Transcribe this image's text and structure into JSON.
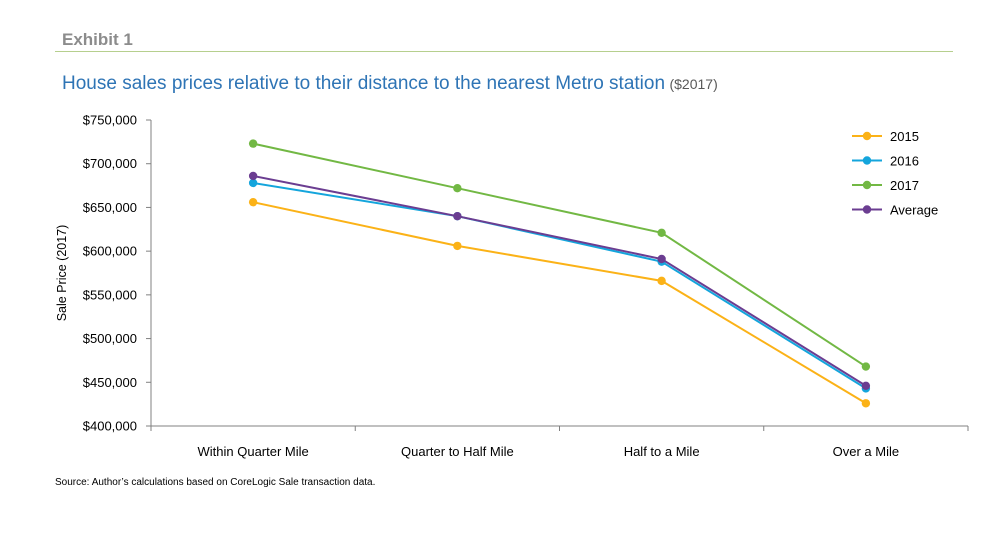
{
  "exhibit": {
    "label": "Exhibit 1"
  },
  "title": {
    "main": "House sales prices relative to their distance to the nearest Metro station",
    "sub": "($2017)"
  },
  "source_note": "Source: Author’s calculations based on CoreLogic Sale transaction data.",
  "chart_data": {
    "type": "line",
    "title": "House sales prices relative to their distance to the nearest Metro station ($2017)",
    "xlabel": "",
    "ylabel": "Sale Price (2017)",
    "categories": [
      "Within Quarter Mile",
      "Quarter to Half Mile",
      "Half to a Mile",
      "Over a Mile"
    ],
    "ylim": [
      400000,
      750000
    ],
    "yticks": [
      400000,
      450000,
      500000,
      550000,
      600000,
      650000,
      700000,
      750000
    ],
    "ytick_labels": [
      "$400,000",
      "$450,000",
      "$500,000",
      "$550,000",
      "$600,000",
      "$650,000",
      "$700,000",
      "$750,000"
    ],
    "grid": false,
    "legend_position": "top-right",
    "series": [
      {
        "name": "2015",
        "color": "#fbb217",
        "values": [
          656000,
          606000,
          566000,
          426000
        ]
      },
      {
        "name": "2016",
        "color": "#14a5dc",
        "values": [
          678000,
          640000,
          588000,
          443000
        ]
      },
      {
        "name": "2017",
        "color": "#72b844",
        "values": [
          723000,
          672000,
          621000,
          468000
        ]
      },
      {
        "name": "Average",
        "color": "#6b3d91",
        "values": [
          686000,
          640000,
          591000,
          446000
        ]
      }
    ]
  }
}
